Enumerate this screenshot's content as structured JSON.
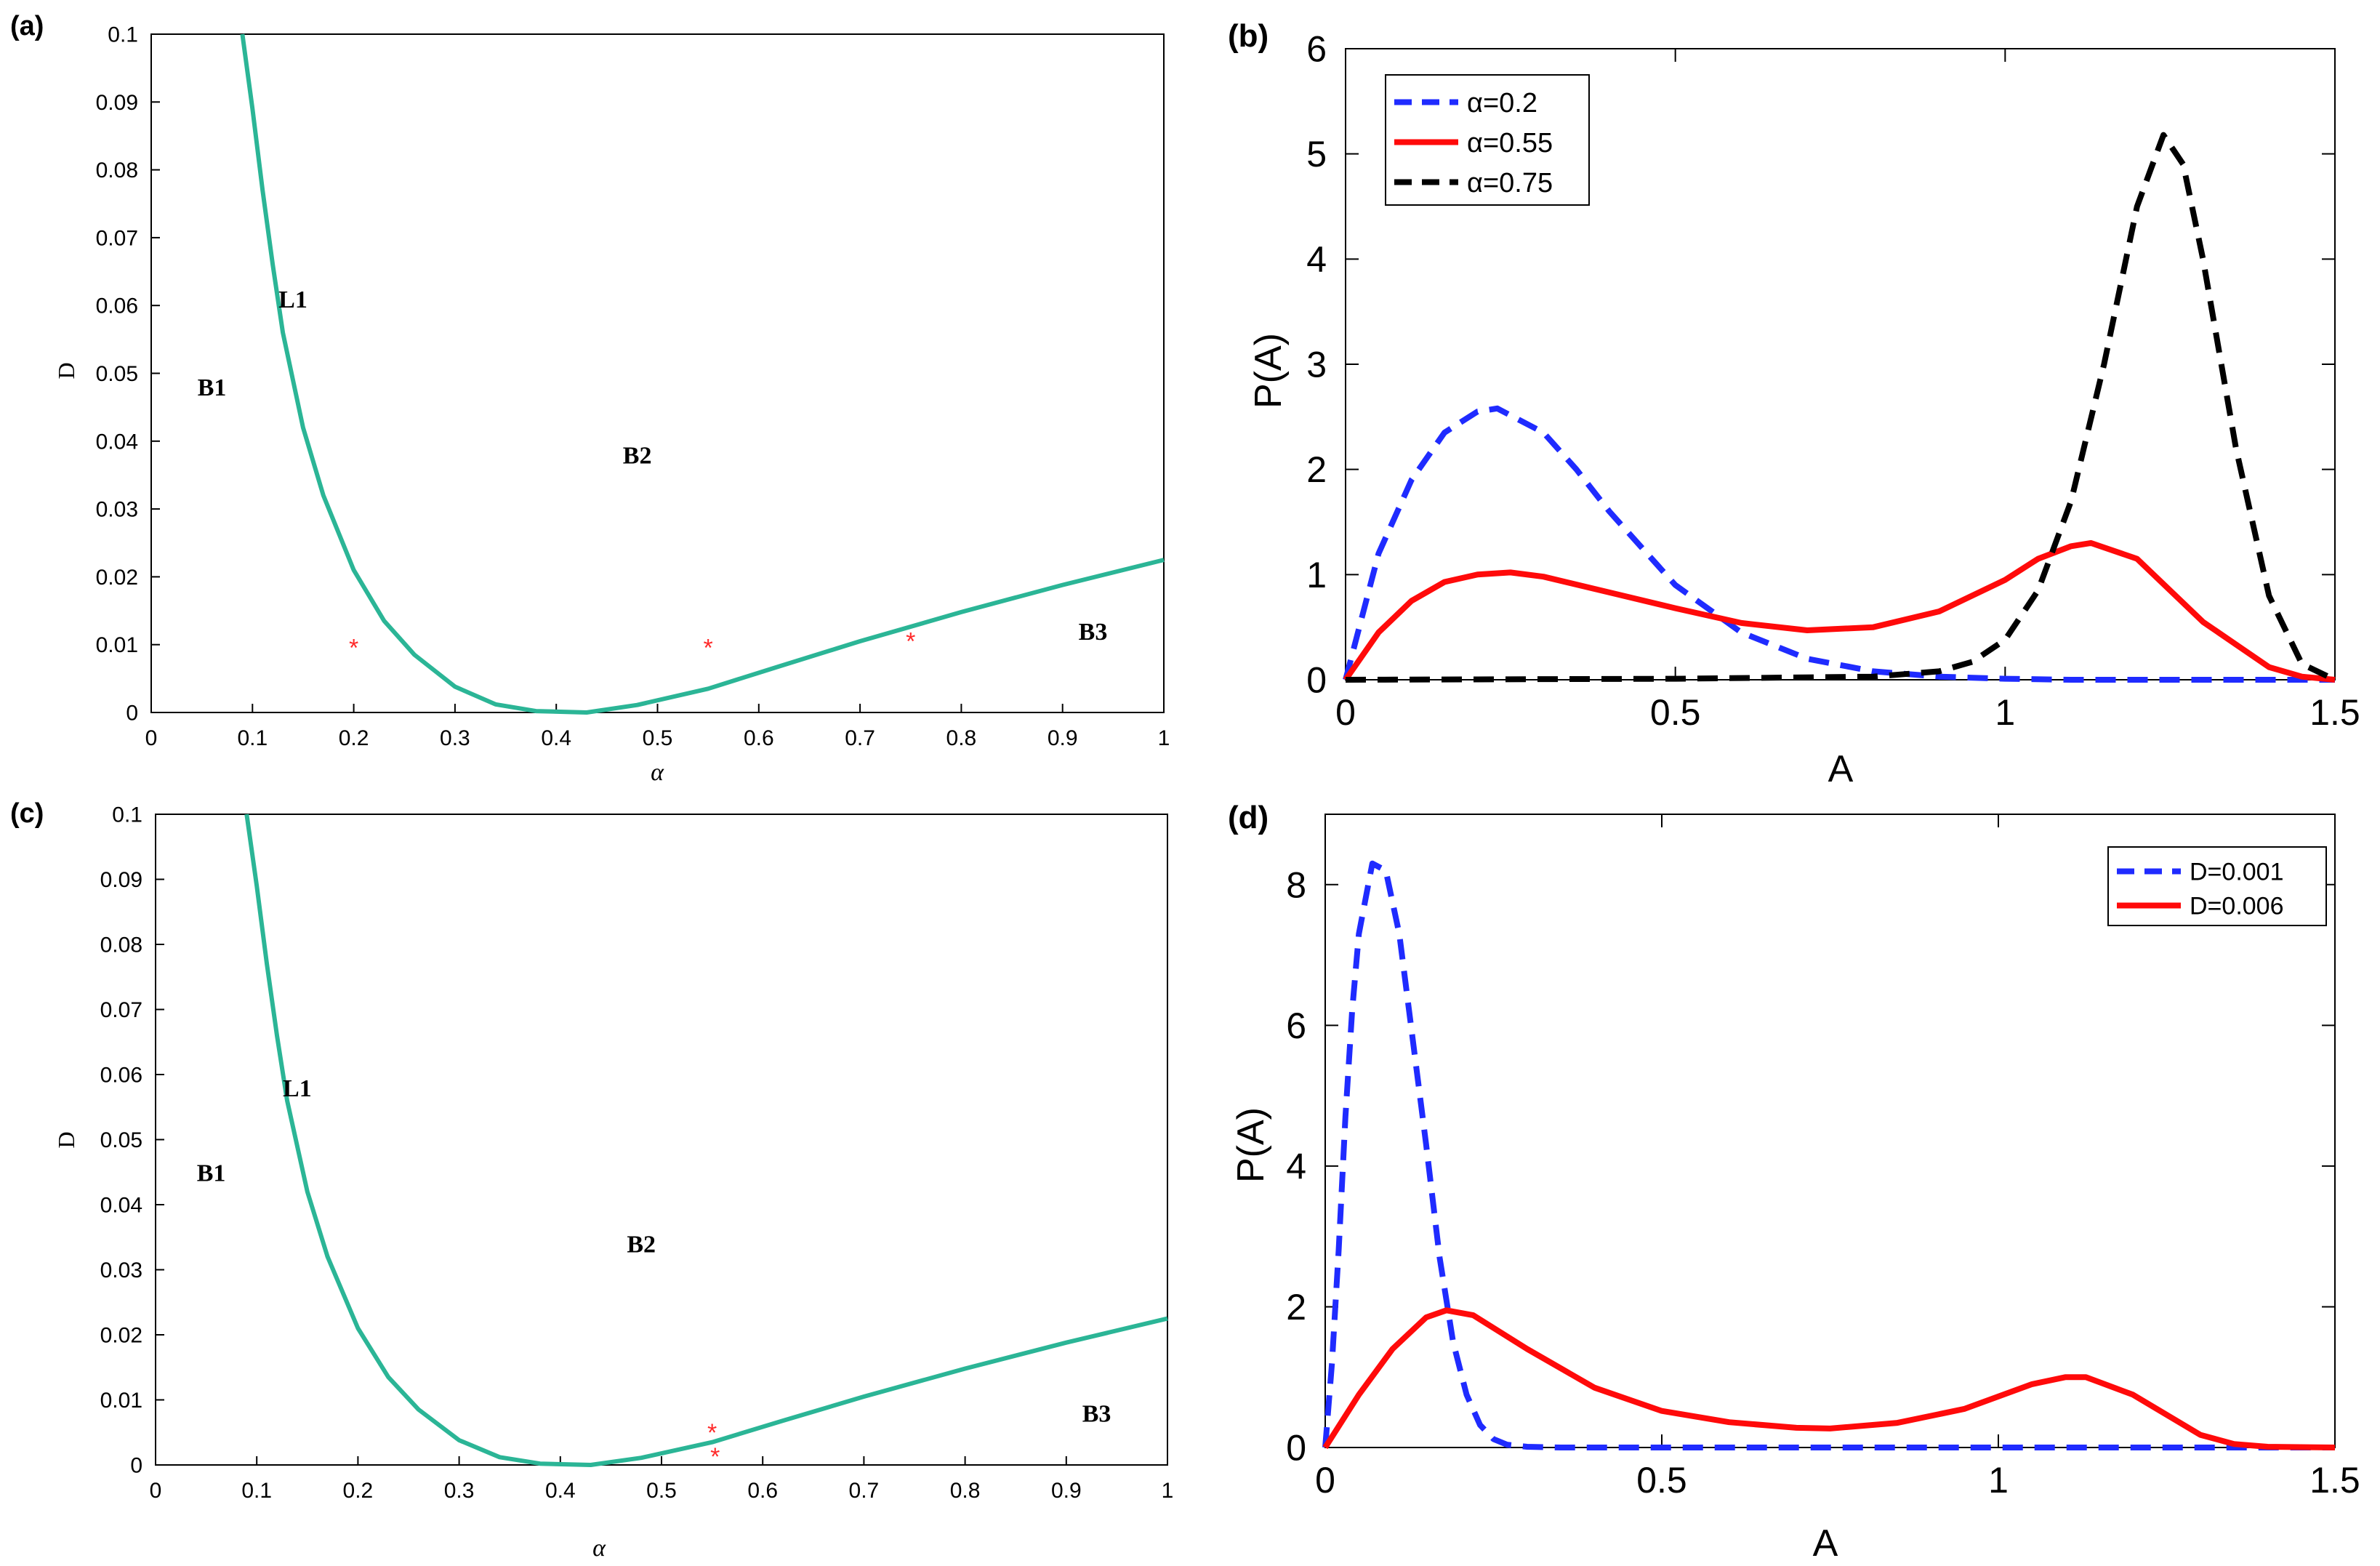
{
  "colors": {
    "boundary": "#2bb596",
    "marker": "#ff2a2a",
    "blue": "#1f2bff",
    "red": "#ff0a0a",
    "black": "#000000"
  },
  "chart_data": [
    {
      "panel": "(a)",
      "type": "line",
      "xlabel": "α",
      "ylabel": "D",
      "xlim": [
        0,
        1
      ],
      "ylim": [
        0,
        0.1
      ],
      "xticks": [
        "0",
        "0.1",
        "0.2",
        "0.3",
        "0.4",
        "0.5",
        "0.6",
        "0.7",
        "0.8",
        "0.9",
        "1"
      ],
      "yticks": [
        "0",
        "0.01",
        "0.02",
        "0.03",
        "0.04",
        "0.05",
        "0.06",
        "0.07",
        "0.08",
        "0.09",
        "0.1"
      ],
      "series": [
        {
          "name": "L1",
          "x": [
            0.09,
            0.1,
            0.11,
            0.12,
            0.13,
            0.15,
            0.17,
            0.2,
            0.23,
            0.26,
            0.3,
            0.34,
            0.38,
            0.43,
            0.48,
            0.55,
            0.62,
            0.7,
            0.8,
            0.9,
            1.0
          ],
          "y": [
            0.1,
            0.089,
            0.077,
            0.066,
            0.056,
            0.042,
            0.032,
            0.021,
            0.0135,
            0.0085,
            0.0038,
            0.0012,
            0.0002,
            0,
            0.0011,
            0.0035,
            0.0068,
            0.0105,
            0.0148,
            0.0188,
            0.0225
          ]
        }
      ],
      "markers": [
        {
          "x": 0.2,
          "y": 0.01
        },
        {
          "x": 0.55,
          "y": 0.01
        },
        {
          "x": 0.75,
          "y": 0.011
        }
      ],
      "annotations": [
        {
          "text": "L1",
          "x": 0.14,
          "y": 0.061
        },
        {
          "text": "B1",
          "x": 0.06,
          "y": 0.048
        },
        {
          "text": "B2",
          "x": 0.48,
          "y": 0.038
        },
        {
          "text": "B3",
          "x": 0.93,
          "y": 0.012
        }
      ]
    },
    {
      "panel": "(b)",
      "type": "line",
      "xlabel": "A",
      "ylabel": "P(A)",
      "xlim": [
        0,
        1.5
      ],
      "ylim": [
        0,
        6
      ],
      "xticks": [
        "0",
        "0.5",
        "1",
        "1.5"
      ],
      "yticks": [
        "0",
        "1",
        "2",
        "3",
        "4",
        "5",
        "6"
      ],
      "legend_position": "top-left",
      "series": [
        {
          "name": "α=0.2",
          "style": "dashed",
          "color": "blue",
          "x": [
            0,
            0.05,
            0.1,
            0.15,
            0.2,
            0.23,
            0.3,
            0.35,
            0.4,
            0.5,
            0.6,
            0.7,
            0.8,
            0.9,
            1,
            1.1,
            1.5
          ],
          "y": [
            0,
            1.2,
            1.9,
            2.35,
            2.55,
            2.58,
            2.35,
            2.0,
            1.6,
            0.9,
            0.45,
            0.2,
            0.08,
            0.03,
            0.01,
            0.0,
            0
          ]
        },
        {
          "name": "α=0.55",
          "style": "solid",
          "color": "red",
          "x": [
            0,
            0.05,
            0.1,
            0.15,
            0.2,
            0.25,
            0.3,
            0.4,
            0.5,
            0.6,
            0.7,
            0.8,
            0.9,
            1,
            1.05,
            1.1,
            1.13,
            1.2,
            1.3,
            1.4,
            1.45,
            1.5
          ],
          "y": [
            0,
            0.45,
            0.75,
            0.93,
            1.0,
            1.02,
            0.98,
            0.83,
            0.68,
            0.54,
            0.47,
            0.5,
            0.65,
            0.95,
            1.15,
            1.27,
            1.3,
            1.15,
            0.55,
            0.12,
            0.03,
            0
          ]
        },
        {
          "name": "α=0.75",
          "style": "dashed",
          "color": "black",
          "x": [
            0,
            0.5,
            0.8,
            0.9,
            0.95,
            1.0,
            1.05,
            1.1,
            1.15,
            1.2,
            1.24,
            1.27,
            1.3,
            1.35,
            1.4,
            1.45,
            1.5
          ],
          "y": [
            0,
            0.01,
            0.03,
            0.08,
            0.17,
            0.38,
            0.85,
            1.7,
            3.0,
            4.5,
            5.18,
            4.9,
            4.0,
            2.2,
            0.8,
            0.15,
            0
          ]
        }
      ]
    },
    {
      "panel": "(c)",
      "type": "line",
      "xlabel": "α",
      "ylabel": "D",
      "xlim": [
        0,
        1
      ],
      "ylim": [
        0,
        0.1
      ],
      "xticks": [
        "0",
        "0.1",
        "0.2",
        "0.3",
        "0.4",
        "0.5",
        "0.6",
        "0.7",
        "0.8",
        "0.9",
        "1"
      ],
      "yticks": [
        "0",
        "0.01",
        "0.02",
        "0.03",
        "0.04",
        "0.05",
        "0.06",
        "0.07",
        "0.08",
        "0.09",
        "0.1"
      ],
      "series": [
        {
          "name": "L1",
          "x": [
            0.09,
            0.1,
            0.11,
            0.12,
            0.13,
            0.15,
            0.17,
            0.2,
            0.23,
            0.26,
            0.3,
            0.34,
            0.38,
            0.43,
            0.48,
            0.55,
            0.62,
            0.7,
            0.8,
            0.9,
            1.0
          ],
          "y": [
            0.1,
            0.089,
            0.077,
            0.066,
            0.056,
            0.042,
            0.032,
            0.021,
            0.0135,
            0.0085,
            0.0038,
            0.0012,
            0.0002,
            0,
            0.0011,
            0.0035,
            0.0068,
            0.0105,
            0.0148,
            0.0188,
            0.0225
          ]
        }
      ],
      "markers": [
        {
          "x": 0.55,
          "y": 0.0055
        },
        {
          "x": 0.553,
          "y": 0.0018
        }
      ],
      "annotations": [
        {
          "text": "L1",
          "x": 0.14,
          "y": 0.058
        },
        {
          "text": "B1",
          "x": 0.055,
          "y": 0.045
        },
        {
          "text": "B2",
          "x": 0.48,
          "y": 0.034
        },
        {
          "text": "B3",
          "x": 0.93,
          "y": 0.008
        }
      ]
    },
    {
      "panel": "(d)",
      "type": "line",
      "xlabel": "A",
      "ylabel": "P(A)",
      "xlim": [
        0,
        1.5
      ],
      "ylim": [
        0,
        9
      ],
      "xticks": [
        "0",
        "0.5",
        "1",
        "1.5"
      ],
      "yticks": [
        "0",
        "2",
        "4",
        "6",
        "8"
      ],
      "legend_position": "top-right",
      "series": [
        {
          "name": "D=0.001",
          "style": "dashed",
          "color": "blue",
          "x": [
            0,
            0.01,
            0.02,
            0.03,
            0.04,
            0.05,
            0.07,
            0.09,
            0.11,
            0.13,
            0.15,
            0.17,
            0.19,
            0.21,
            0.23,
            0.25,
            0.27,
            0.3,
            0.35,
            1.5
          ],
          "y": [
            0,
            1.2,
            2.8,
            4.7,
            6.2,
            7.3,
            8.3,
            8.2,
            7.3,
            5.8,
            4.3,
            2.7,
            1.5,
            0.75,
            0.32,
            0.12,
            0.04,
            0.01,
            0,
            0
          ]
        },
        {
          "name": "D=0.006",
          "style": "solid",
          "color": "red",
          "x": [
            0,
            0.05,
            0.1,
            0.15,
            0.18,
            0.22,
            0.3,
            0.4,
            0.5,
            0.6,
            0.7,
            0.75,
            0.85,
            0.95,
            1.05,
            1.1,
            1.13,
            1.2,
            1.3,
            1.35,
            1.4,
            1.5
          ],
          "y": [
            0,
            0.75,
            1.4,
            1.85,
            1.95,
            1.88,
            1.4,
            0.85,
            0.52,
            0.36,
            0.28,
            0.27,
            0.35,
            0.55,
            0.9,
            1.0,
            1.0,
            0.75,
            0.18,
            0.05,
            0.01,
            0
          ]
        }
      ]
    }
  ]
}
